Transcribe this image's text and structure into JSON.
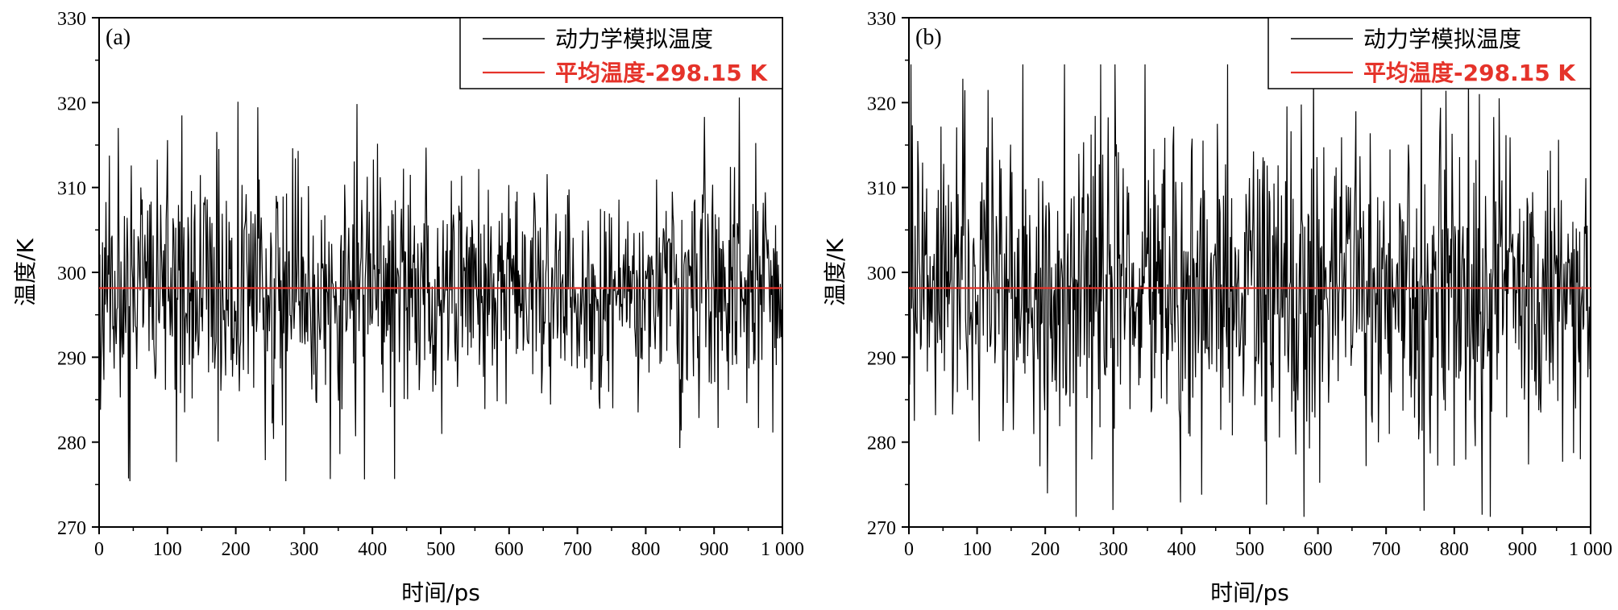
{
  "chart_data": [
    {
      "type": "line",
      "panel_label": "(a)",
      "xlabel": "时间/ps",
      "ylabel": "温度/K",
      "xlim": [
        0,
        1000
      ],
      "ylim": [
        270,
        330
      ],
      "xticks": [
        0,
        100,
        200,
        300,
        400,
        500,
        600,
        700,
        800,
        900,
        1000
      ],
      "xtick_labels": [
        "0",
        "100",
        "200",
        "300",
        "400",
        "500",
        "600",
        "700",
        "800",
        "900",
        "1 000"
      ],
      "yticks": [
        270,
        280,
        290,
        300,
        310,
        320,
        330
      ],
      "ytick_labels": [
        "270",
        "280",
        "290",
        "300",
        "310",
        "320",
        "330"
      ],
      "grid": false,
      "legend": {
        "position": "top-right",
        "entries": [
          {
            "label": "动力学模拟温度",
            "color": "#000000",
            "bold": false
          },
          {
            "label": "平均温度-298.15 K",
            "color": "#e5332a",
            "bold": true
          }
        ]
      },
      "series": [
        {
          "name": "动力学模拟温度",
          "color": "#000000",
          "noise": {
            "points": 1000,
            "mean": 298.15,
            "amplitude": 6.5,
            "min": 275.4,
            "max": 320.6,
            "seed": 11
          }
        },
        {
          "name": "平均温度-298.15 K",
          "color": "#e5332a",
          "constant": 298.15
        }
      ]
    },
    {
      "type": "line",
      "panel_label": "(b)",
      "xlabel": "时间/ps",
      "ylabel": "温度/K",
      "xlim": [
        0,
        1000
      ],
      "ylim": [
        270,
        330
      ],
      "xticks": [
        0,
        100,
        200,
        300,
        400,
        500,
        600,
        700,
        800,
        900,
        1000
      ],
      "xtick_labels": [
        "0",
        "100",
        "200",
        "300",
        "400",
        "500",
        "600",
        "700",
        "800",
        "900",
        "1 000"
      ],
      "yticks": [
        270,
        280,
        290,
        300,
        310,
        320,
        330
      ],
      "ytick_labels": [
        "270",
        "280",
        "290",
        "300",
        "310",
        "320",
        "330"
      ],
      "grid": false,
      "legend": {
        "position": "top-right",
        "entries": [
          {
            "label": "动力学模拟温度",
            "color": "#000000",
            "bold": false
          },
          {
            "label": "平均温度-298.15 K",
            "color": "#e5332a",
            "bold": true
          }
        ]
      },
      "series": [
        {
          "name": "动力学模拟温度",
          "color": "#000000",
          "noise": {
            "points": 1000,
            "mean": 298.15,
            "amplitude": 9.0,
            "min": 271.2,
            "max": 324.5,
            "seed": 29
          }
        },
        {
          "name": "平均温度-298.15 K",
          "color": "#e5332a",
          "constant": 298.15
        }
      ]
    }
  ]
}
